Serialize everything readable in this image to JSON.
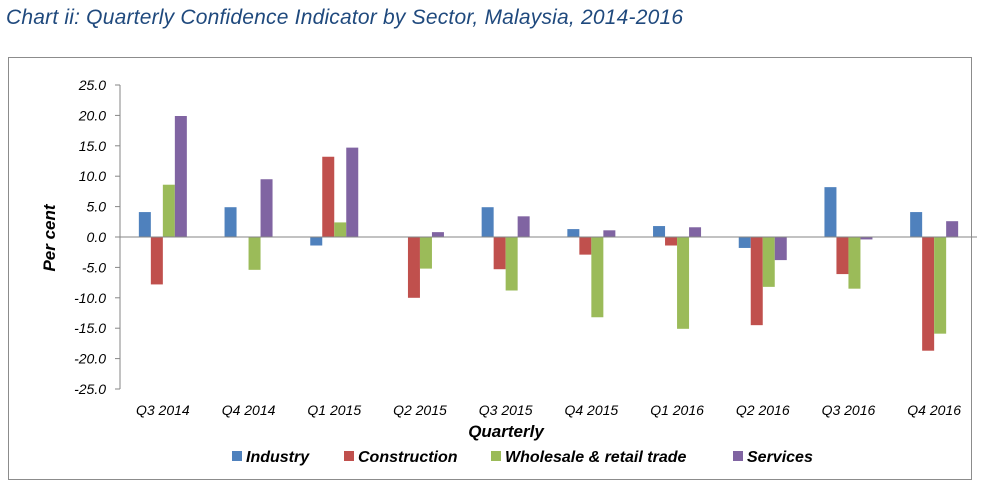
{
  "title": "Chart ii: Quarterly Confidence Indicator by Sector, Malaysia, 2014-2016",
  "chart_data": {
    "type": "bar",
    "title": "Chart ii: Quarterly Confidence Indicator by Sector, Malaysia, 2014-2016",
    "xlabel": "Quarterly",
    "ylabel": "Per cent",
    "ylim": [
      -25,
      25
    ],
    "ytick_step": 5,
    "yticks": [
      "25.0",
      "20.0",
      "15.0",
      "10.0",
      "5.0",
      "0.0",
      "-5.0",
      "-10.0",
      "-15.0",
      "-20.0",
      "-25.0"
    ],
    "legend_position": "bottom",
    "grid": false,
    "categories": [
      "Q3 2014",
      "Q4 2014",
      "Q1 2015",
      "Q2 2015",
      "Q3 2015",
      "Q4 2015",
      "Q1 2016",
      "Q2 2016",
      "Q3 2016",
      "Q4 2016"
    ],
    "series": [
      {
        "name": "Industry",
        "color": "#4f81bd",
        "values": [
          4.1,
          4.9,
          -1.4,
          0.0,
          4.9,
          1.3,
          1.8,
          -1.8,
          8.2,
          4.1
        ]
      },
      {
        "name": "Construction",
        "color": "#c0504d",
        "values": [
          -7.8,
          0.0,
          13.2,
          -10.0,
          -5.3,
          -2.9,
          -1.4,
          -14.5,
          -6.1,
          -18.7
        ]
      },
      {
        "name": "Wholesale & retail trade",
        "color": "#9bbb59",
        "values": [
          8.6,
          -5.4,
          2.4,
          -5.2,
          -8.8,
          -13.2,
          -15.1,
          -8.2,
          -8.5,
          -15.9
        ]
      },
      {
        "name": "Services",
        "color": "#8064a2",
        "values": [
          19.9,
          9.5,
          14.7,
          0.8,
          3.4,
          1.1,
          1.6,
          -3.8,
          -0.4,
          2.6
        ]
      }
    ]
  }
}
